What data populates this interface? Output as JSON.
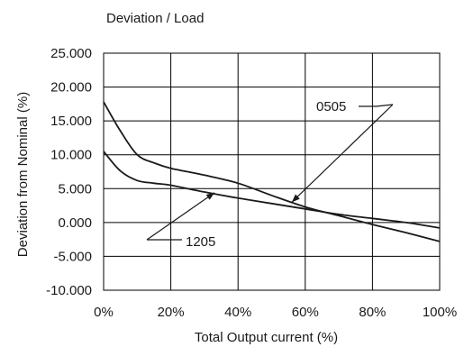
{
  "chart_data": {
    "type": "line",
    "title": "Deviation / Load",
    "xlabel": "Total Output current (%)",
    "ylabel": "Deviation from Nominal (%)",
    "xlim": [
      0,
      100
    ],
    "ylim": [
      -10,
      25
    ],
    "x_ticks": [
      0,
      20,
      40,
      60,
      80,
      100
    ],
    "x_tick_labels": [
      "0%",
      "20%",
      "40%",
      "60%",
      "80%",
      "100%"
    ],
    "y_ticks": [
      25,
      20,
      15,
      10,
      5,
      0,
      -5,
      -10
    ],
    "y_tick_labels": [
      "25.000",
      "20.000",
      "15.000",
      "10.000",
      "5.000",
      "0.000",
      "-5.000",
      "-10.000"
    ],
    "grid": true,
    "series": [
      {
        "name": "0505",
        "x": [
          0,
          5,
          10,
          15,
          20,
          30,
          40,
          50,
          60,
          70,
          80,
          90,
          100
        ],
        "y": [
          17.8,
          13.5,
          10.0,
          8.8,
          8.0,
          7.0,
          5.8,
          4.0,
          2.3,
          1.0,
          -0.3,
          -1.5,
          -2.8
        ]
      },
      {
        "name": "1205",
        "x": [
          0,
          5,
          10,
          15,
          20,
          30,
          40,
          50,
          60,
          70,
          80,
          90,
          100
        ],
        "y": [
          10.5,
          7.6,
          6.2,
          5.8,
          5.5,
          4.5,
          3.6,
          2.8,
          2.0,
          1.2,
          0.6,
          0.0,
          -0.8
        ]
      }
    ]
  }
}
